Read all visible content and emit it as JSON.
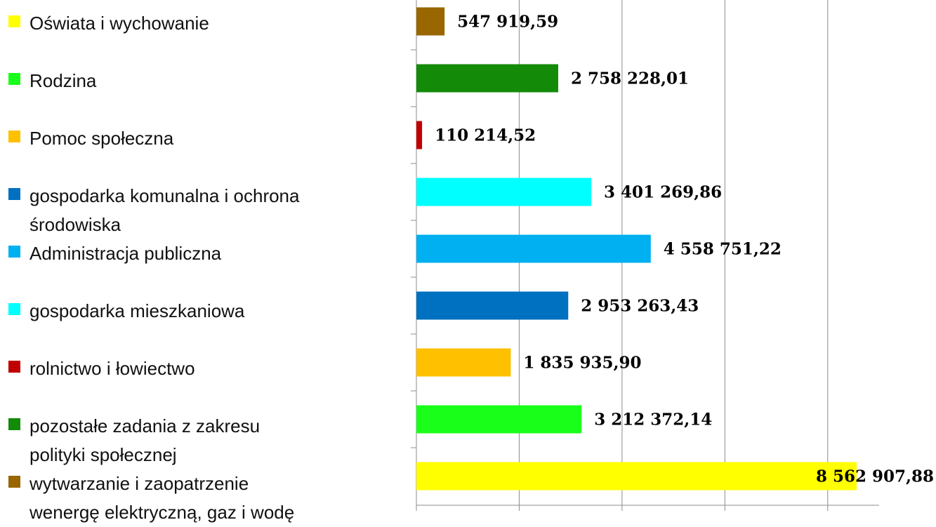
{
  "chart_data": {
    "type": "bar",
    "orientation": "horizontal",
    "categories": [
      "wytwarzanie i zaopatrzenie wenergę elektryczną, gaz i wodę",
      "pozostałe zadania z zakresu polityki społecznej",
      "rolnictwo i łowiectwo",
      "gospodarka mieszkaniowa",
      "Administracja publiczna",
      "gospodarka komunalna i ochrona środowiska",
      "Pomoc społeczna",
      "Rodzina",
      "Oświata i wychowanie"
    ],
    "values": [
      547919.59,
      2758228.01,
      110214.52,
      3401269.86,
      4558751.22,
      2953263.43,
      1835935.9,
      3212372.14,
      8562907.88
    ],
    "value_labels": [
      "547 919,59",
      "2 758 228,01",
      "110 214,52",
      "3 401 269,86",
      "4 558 751,22",
      "2 953 263,43",
      "1 835 935,90",
      "3 212 372,14",
      "8 562 907,88"
    ],
    "colors": [
      "#996600",
      "#138a08",
      "#c00000",
      "#00ffff",
      "#00b0f0",
      "#0070c0",
      "#ffc000",
      "#1aff1a",
      "#ffff00"
    ],
    "xlim": [
      0,
      9000000
    ],
    "xticks": [
      0,
      2000000,
      4000000,
      6000000,
      8000000
    ],
    "grid": true,
    "legend": "left"
  }
}
